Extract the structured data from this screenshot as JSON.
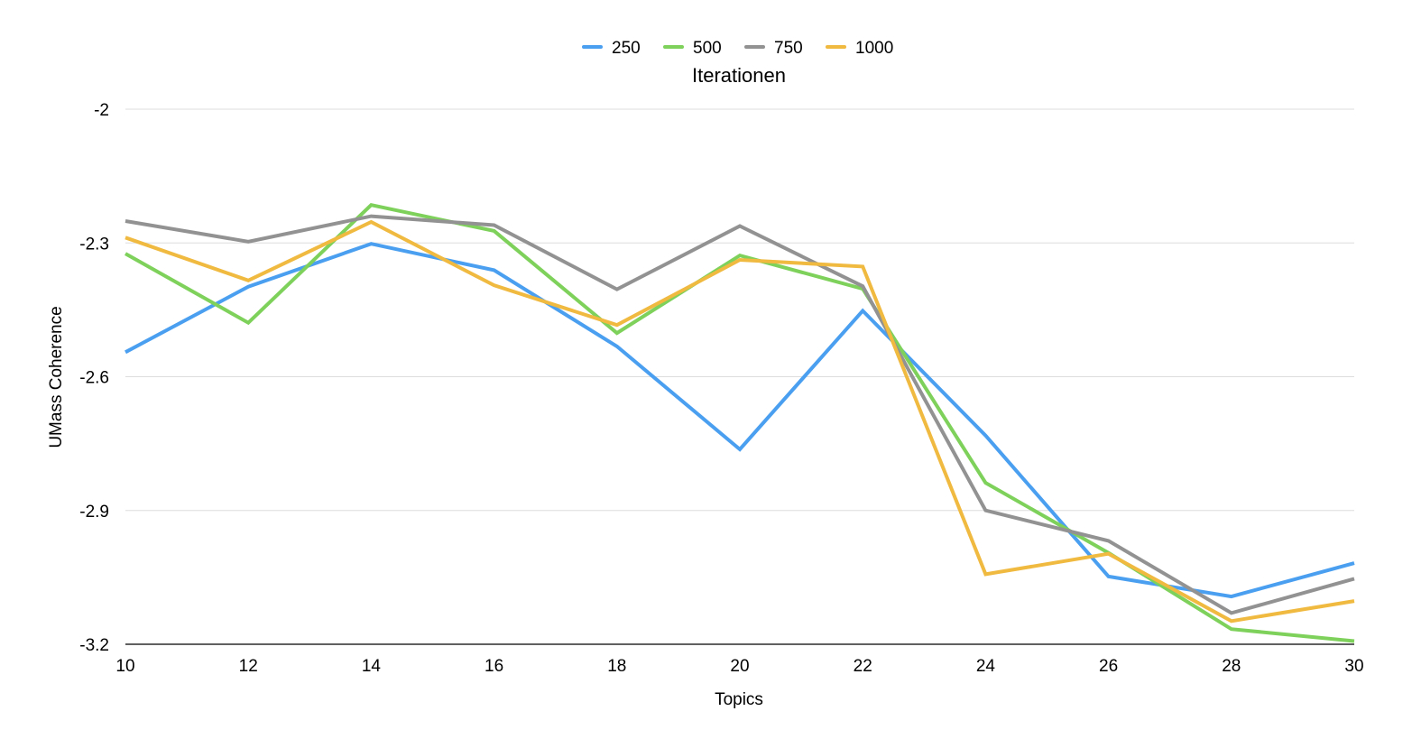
{
  "chart_data": {
    "type": "line",
    "xlabel": "Topics",
    "ylabel": "UMass Coherence",
    "legend_title": "Iterationen",
    "legend_position": "top-center",
    "x": [
      10,
      12,
      14,
      16,
      18,
      20,
      22,
      24,
      26,
      28,
      30
    ],
    "xlim": [
      10,
      30
    ],
    "ylim": [
      -3.2,
      -2
    ],
    "yticks": [
      -2,
      -2.3,
      -2.6,
      -2.9,
      -3.2
    ],
    "ytick_labels": [
      "-2",
      "-2.3",
      "-2.6",
      "-2.9",
      "-3.2"
    ],
    "xtick_labels": [
      "10",
      "12",
      "14",
      "16",
      "18",
      "20",
      "22",
      "24",
      "26",
      "28",
      "30"
    ],
    "grid": true,
    "series": [
      {
        "name": "250",
        "color": "#4a9ff0",
        "values": [
          -2.545,
          -2.398,
          -2.302,
          -2.361,
          -2.532,
          -2.763,
          -2.452,
          -2.732,
          -3.048,
          -3.093,
          -3.018
        ]
      },
      {
        "name": "500",
        "color": "#7ed15a",
        "values": [
          -2.324,
          -2.479,
          -2.215,
          -2.273,
          -2.502,
          -2.328,
          -2.403,
          -2.838,
          -2.995,
          -3.166,
          -3.193
        ]
      },
      {
        "name": "750",
        "color": "#929292",
        "values": [
          -2.251,
          -2.297,
          -2.24,
          -2.26,
          -2.404,
          -2.262,
          -2.397,
          -2.9,
          -2.968,
          -3.13,
          -3.053
        ]
      },
      {
        "name": "1000",
        "color": "#f0b940",
        "values": [
          -2.288,
          -2.384,
          -2.253,
          -2.395,
          -2.484,
          -2.338,
          -2.353,
          -3.043,
          -2.997,
          -3.148,
          -3.103
        ]
      }
    ]
  }
}
